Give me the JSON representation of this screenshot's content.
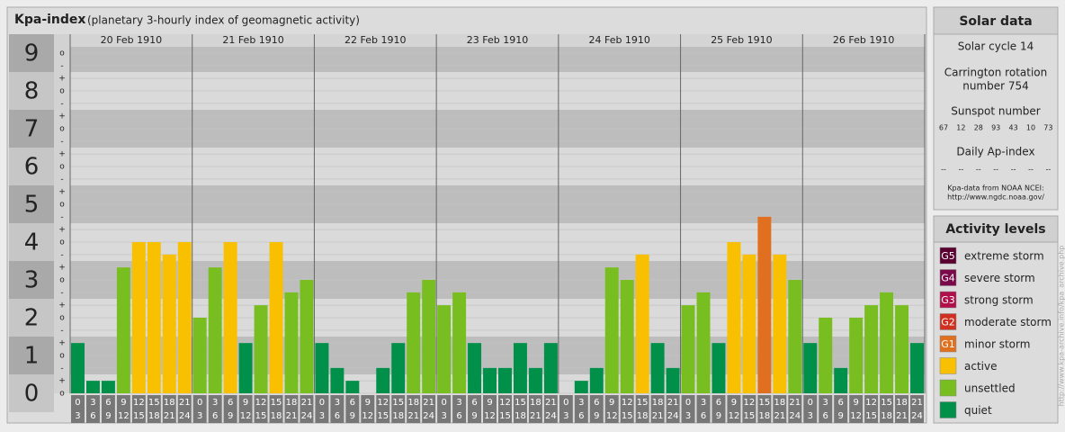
{
  "chart_data": {
    "type": "bar",
    "title": "Kpa-index",
    "subtitle": "(planetary 3-hourly index of geomagnetic activity)",
    "ylim": [
      0,
      9.5
    ],
    "yticks": [
      0,
      1,
      2,
      3,
      4,
      5,
      6,
      7,
      8,
      9
    ],
    "minor_ticks": [
      {
        "value": 9,
        "label": "o"
      },
      {
        "value": 8.67,
        "label": "-"
      },
      {
        "value": 8.33,
        "label": "+"
      },
      {
        "value": 8,
        "label": "o"
      },
      {
        "value": 7.67,
        "label": "-"
      },
      {
        "value": 7.33,
        "label": "+"
      },
      {
        "value": 7,
        "label": "o"
      },
      {
        "value": 6.67,
        "label": "-"
      },
      {
        "value": 6.33,
        "label": "+"
      },
      {
        "value": 6,
        "label": "o"
      },
      {
        "value": 5.67,
        "label": "-"
      },
      {
        "value": 5.33,
        "label": "+"
      },
      {
        "value": 5,
        "label": "o"
      },
      {
        "value": 4.67,
        "label": "-"
      },
      {
        "value": 4.33,
        "label": "+"
      },
      {
        "value": 4,
        "label": "o"
      },
      {
        "value": 3.67,
        "label": "-"
      },
      {
        "value": 3.33,
        "label": "+"
      },
      {
        "value": 3,
        "label": "o"
      },
      {
        "value": 2.67,
        "label": "-"
      },
      {
        "value": 2.33,
        "label": "+"
      },
      {
        "value": 2,
        "label": "o"
      },
      {
        "value": 1.67,
        "label": "-"
      },
      {
        "value": 1.33,
        "label": "+"
      },
      {
        "value": 1,
        "label": "o"
      },
      {
        "value": 0.67,
        "label": "-"
      },
      {
        "value": 0.33,
        "label": "+"
      },
      {
        "value": 0,
        "label": "o"
      }
    ],
    "hour_bins": [
      0,
      3,
      6,
      9,
      12,
      15,
      18,
      21,
      24
    ],
    "grid": true,
    "days": [
      {
        "date": "20 Feb 1910",
        "values": [
          1.33,
          0.33,
          0.33,
          3.33,
          4,
          4,
          3.67,
          4
        ],
        "colors": [
          "#00904a",
          "#00904a",
          "#00904a",
          "#78be20",
          "#f8c000",
          "#f8c000",
          "#f8c000",
          "#f8c000"
        ]
      },
      {
        "date": "21 Feb 1910",
        "values": [
          2,
          3.33,
          4,
          1.33,
          2.33,
          4,
          2.67,
          3
        ],
        "colors": [
          "#78be20",
          "#78be20",
          "#f8c000",
          "#00904a",
          "#78be20",
          "#f8c000",
          "#78be20",
          "#78be20"
        ]
      },
      {
        "date": "22 Feb 1910",
        "values": [
          1.33,
          0.67,
          0.33,
          0,
          0.67,
          1.33,
          2.67,
          3
        ],
        "colors": [
          "#00904a",
          "#00904a",
          "#00904a",
          "#00904a",
          "#00904a",
          "#00904a",
          "#78be20",
          "#78be20"
        ]
      },
      {
        "date": "23 Feb 1910",
        "values": [
          2.33,
          2.67,
          1.33,
          0.67,
          0.67,
          1.33,
          0.67,
          1.33
        ],
        "colors": [
          "#78be20",
          "#78be20",
          "#00904a",
          "#00904a",
          "#00904a",
          "#00904a",
          "#00904a",
          "#00904a"
        ]
      },
      {
        "date": "24 Feb 1910",
        "values": [
          0,
          0.33,
          0.67,
          3.33,
          3,
          3.67,
          1.33,
          0.67
        ],
        "colors": [
          "#00904a",
          "#00904a",
          "#00904a",
          "#78be20",
          "#78be20",
          "#f8c000",
          "#00904a",
          "#00904a"
        ]
      },
      {
        "date": "25 Feb 1910",
        "values": [
          2.33,
          2.67,
          1.33,
          4,
          3.67,
          4.67,
          3.67,
          3
        ],
        "colors": [
          "#78be20",
          "#78be20",
          "#00904a",
          "#f8c000",
          "#f8c000",
          "#e07020",
          "#f8c000",
          "#78be20"
        ]
      },
      {
        "date": "26 Feb 1910",
        "values": [
          1.33,
          2,
          0.67,
          2,
          2.33,
          2.67,
          2.33,
          1.33
        ],
        "colors": [
          "#00904a",
          "#78be20",
          "#00904a",
          "#78be20",
          "#78be20",
          "#78be20",
          "#78be20",
          "#00904a"
        ]
      }
    ]
  },
  "solar_data": {
    "title": "Solar data",
    "solar_cycle": "Solar cycle 14",
    "carrington": [
      "Carrington rotation",
      "number 754"
    ],
    "sunspot_label": "Sunspot number",
    "sunspot_numbers": [
      67,
      12,
      28,
      93,
      43,
      10,
      73
    ],
    "ap_label": "Daily Ap-index",
    "ap_values": [
      "--",
      "--",
      "--",
      "--",
      "--",
      "--",
      "--"
    ],
    "source": [
      "Kpa-data from NOAA NCEI:",
      "http://www.ngdc.noaa.gov/"
    ]
  },
  "activity_levels": {
    "title": "Activity levels",
    "items": [
      {
        "code": "G5",
        "name": "extreme storm",
        "color": "#5a0030"
      },
      {
        "code": "G4",
        "name": "severe storm",
        "color": "#7a0a4a"
      },
      {
        "code": "G3",
        "name": "strong storm",
        "color": "#b0104a"
      },
      {
        "code": "G2",
        "name": "moderate storm",
        "color": "#d03020"
      },
      {
        "code": "G1",
        "name": "minor storm",
        "color": "#e07020"
      },
      {
        "name": "active",
        "color": "#f8c000"
      },
      {
        "name": "unsettled",
        "color": "#78be20"
      },
      {
        "name": "quiet",
        "color": "#00904a"
      }
    ]
  },
  "watermark": "http://www.kpa-archive.info/kpa_archive.php"
}
